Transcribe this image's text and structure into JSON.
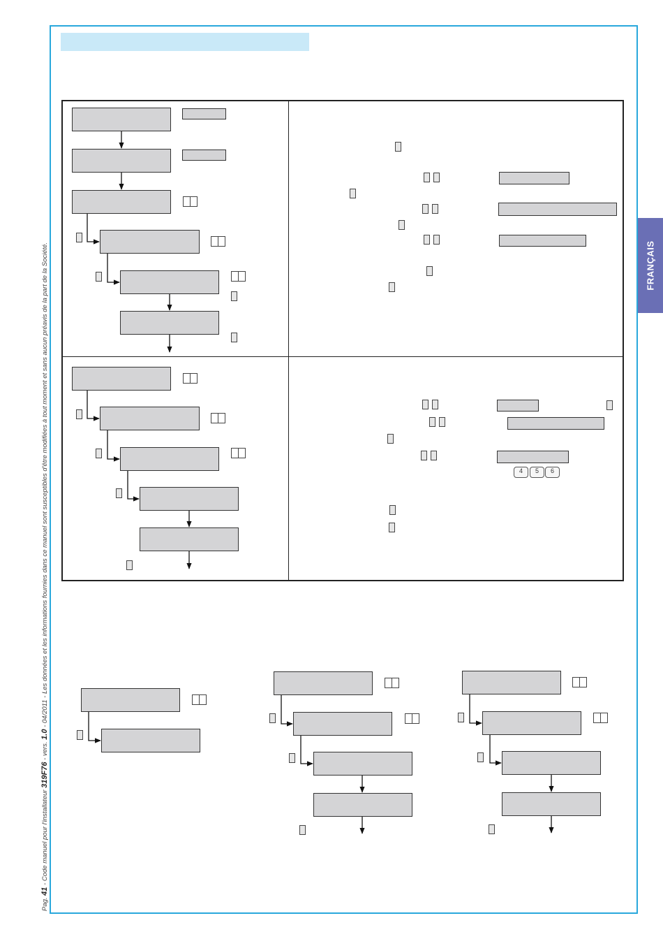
{
  "header": {
    "language_tab": "FRANÇAIS"
  },
  "footer": {
    "page_label": "Pag.",
    "page_number": "41",
    "text_a": " - Code manuel pour l'installateur ",
    "doc_code": "319F76",
    "text_b": " - vers. ",
    "version": "1.0",
    "text_c": " - 04/2011 - Les données et les informations fournies dans ce manuel sont susceptibles d'être modifiées à tout moment et sans aucun préavis de la part de la Société."
  },
  "keypad": {
    "keys": [
      "4",
      "5",
      "6"
    ]
  },
  "colors": {
    "frame": "#29a8dc",
    "title_band": "#c9e9f8",
    "language_tab": "#6a6fb5",
    "display_box": "#d4d4d6"
  }
}
